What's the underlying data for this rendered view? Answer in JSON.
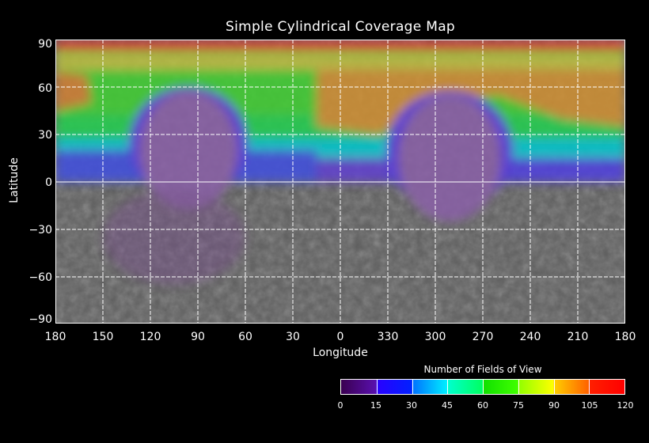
{
  "title": "Simple Cylindrical Coverage Map",
  "x_axis": {
    "label": "Longitude",
    "ticks": [
      "180",
      "150",
      "120",
      "90",
      "60",
      "30",
      "0",
      "330",
      "300",
      "270",
      "240",
      "210",
      "180"
    ]
  },
  "y_axis": {
    "label": "Latitude",
    "ticks": [
      "90",
      "60",
      "30",
      "0",
      "−30",
      "−60",
      "−90"
    ]
  },
  "colorbar": {
    "title": "Number of Fields of View",
    "ticks": [
      "0",
      "15",
      "30",
      "45",
      "60",
      "75",
      "90",
      "105",
      "120"
    ],
    "range": [
      0,
      120
    ],
    "colors": [
      "#3a0050",
      "#2a00ff",
      "#0070ff",
      "#00ffd0",
      "#10e000",
      "#90ff00",
      "#ffd000",
      "#ff2000"
    ]
  }
}
